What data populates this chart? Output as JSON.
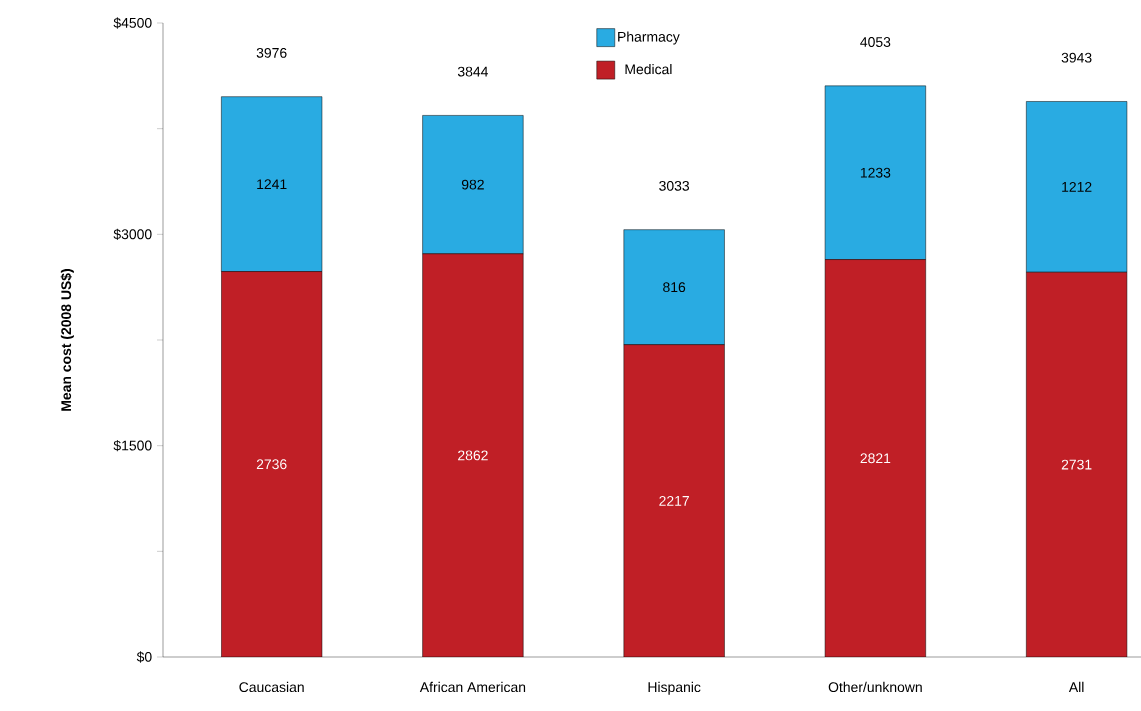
{
  "chart_data": {
    "type": "bar",
    "stacked": true,
    "ylabel": "Mean cost (2008 US$)",
    "categories": [
      "Caucasian",
      "African American",
      "Hispanic",
      "Other/unknown",
      "All"
    ],
    "series": [
      {
        "name": "Medical",
        "color": "#c01f26",
        "values": [
          2736,
          2862,
          2217,
          2821,
          2731
        ]
      },
      {
        "name": "Pharmacy",
        "color": "#29abe2",
        "values": [
          1241,
          982,
          816,
          1233,
          1212
        ]
      }
    ],
    "totals": [
      "3976",
      "3844",
      "3033",
      "4053",
      "3943"
    ],
    "data_labels": true,
    "legend": "top",
    "ylim": [
      0,
      4500
    ],
    "yticks": [
      {
        "value": 0,
        "label": "$0"
      },
      {
        "value": 750,
        "label": null
      },
      {
        "value": 1500,
        "label": "$1500"
      },
      {
        "value": 2250,
        "label": null
      },
      {
        "value": 3000,
        "label": "$3000"
      },
      {
        "value": 3750,
        "label": null
      },
      {
        "value": 4500,
        "label": "$4500"
      }
    ]
  }
}
